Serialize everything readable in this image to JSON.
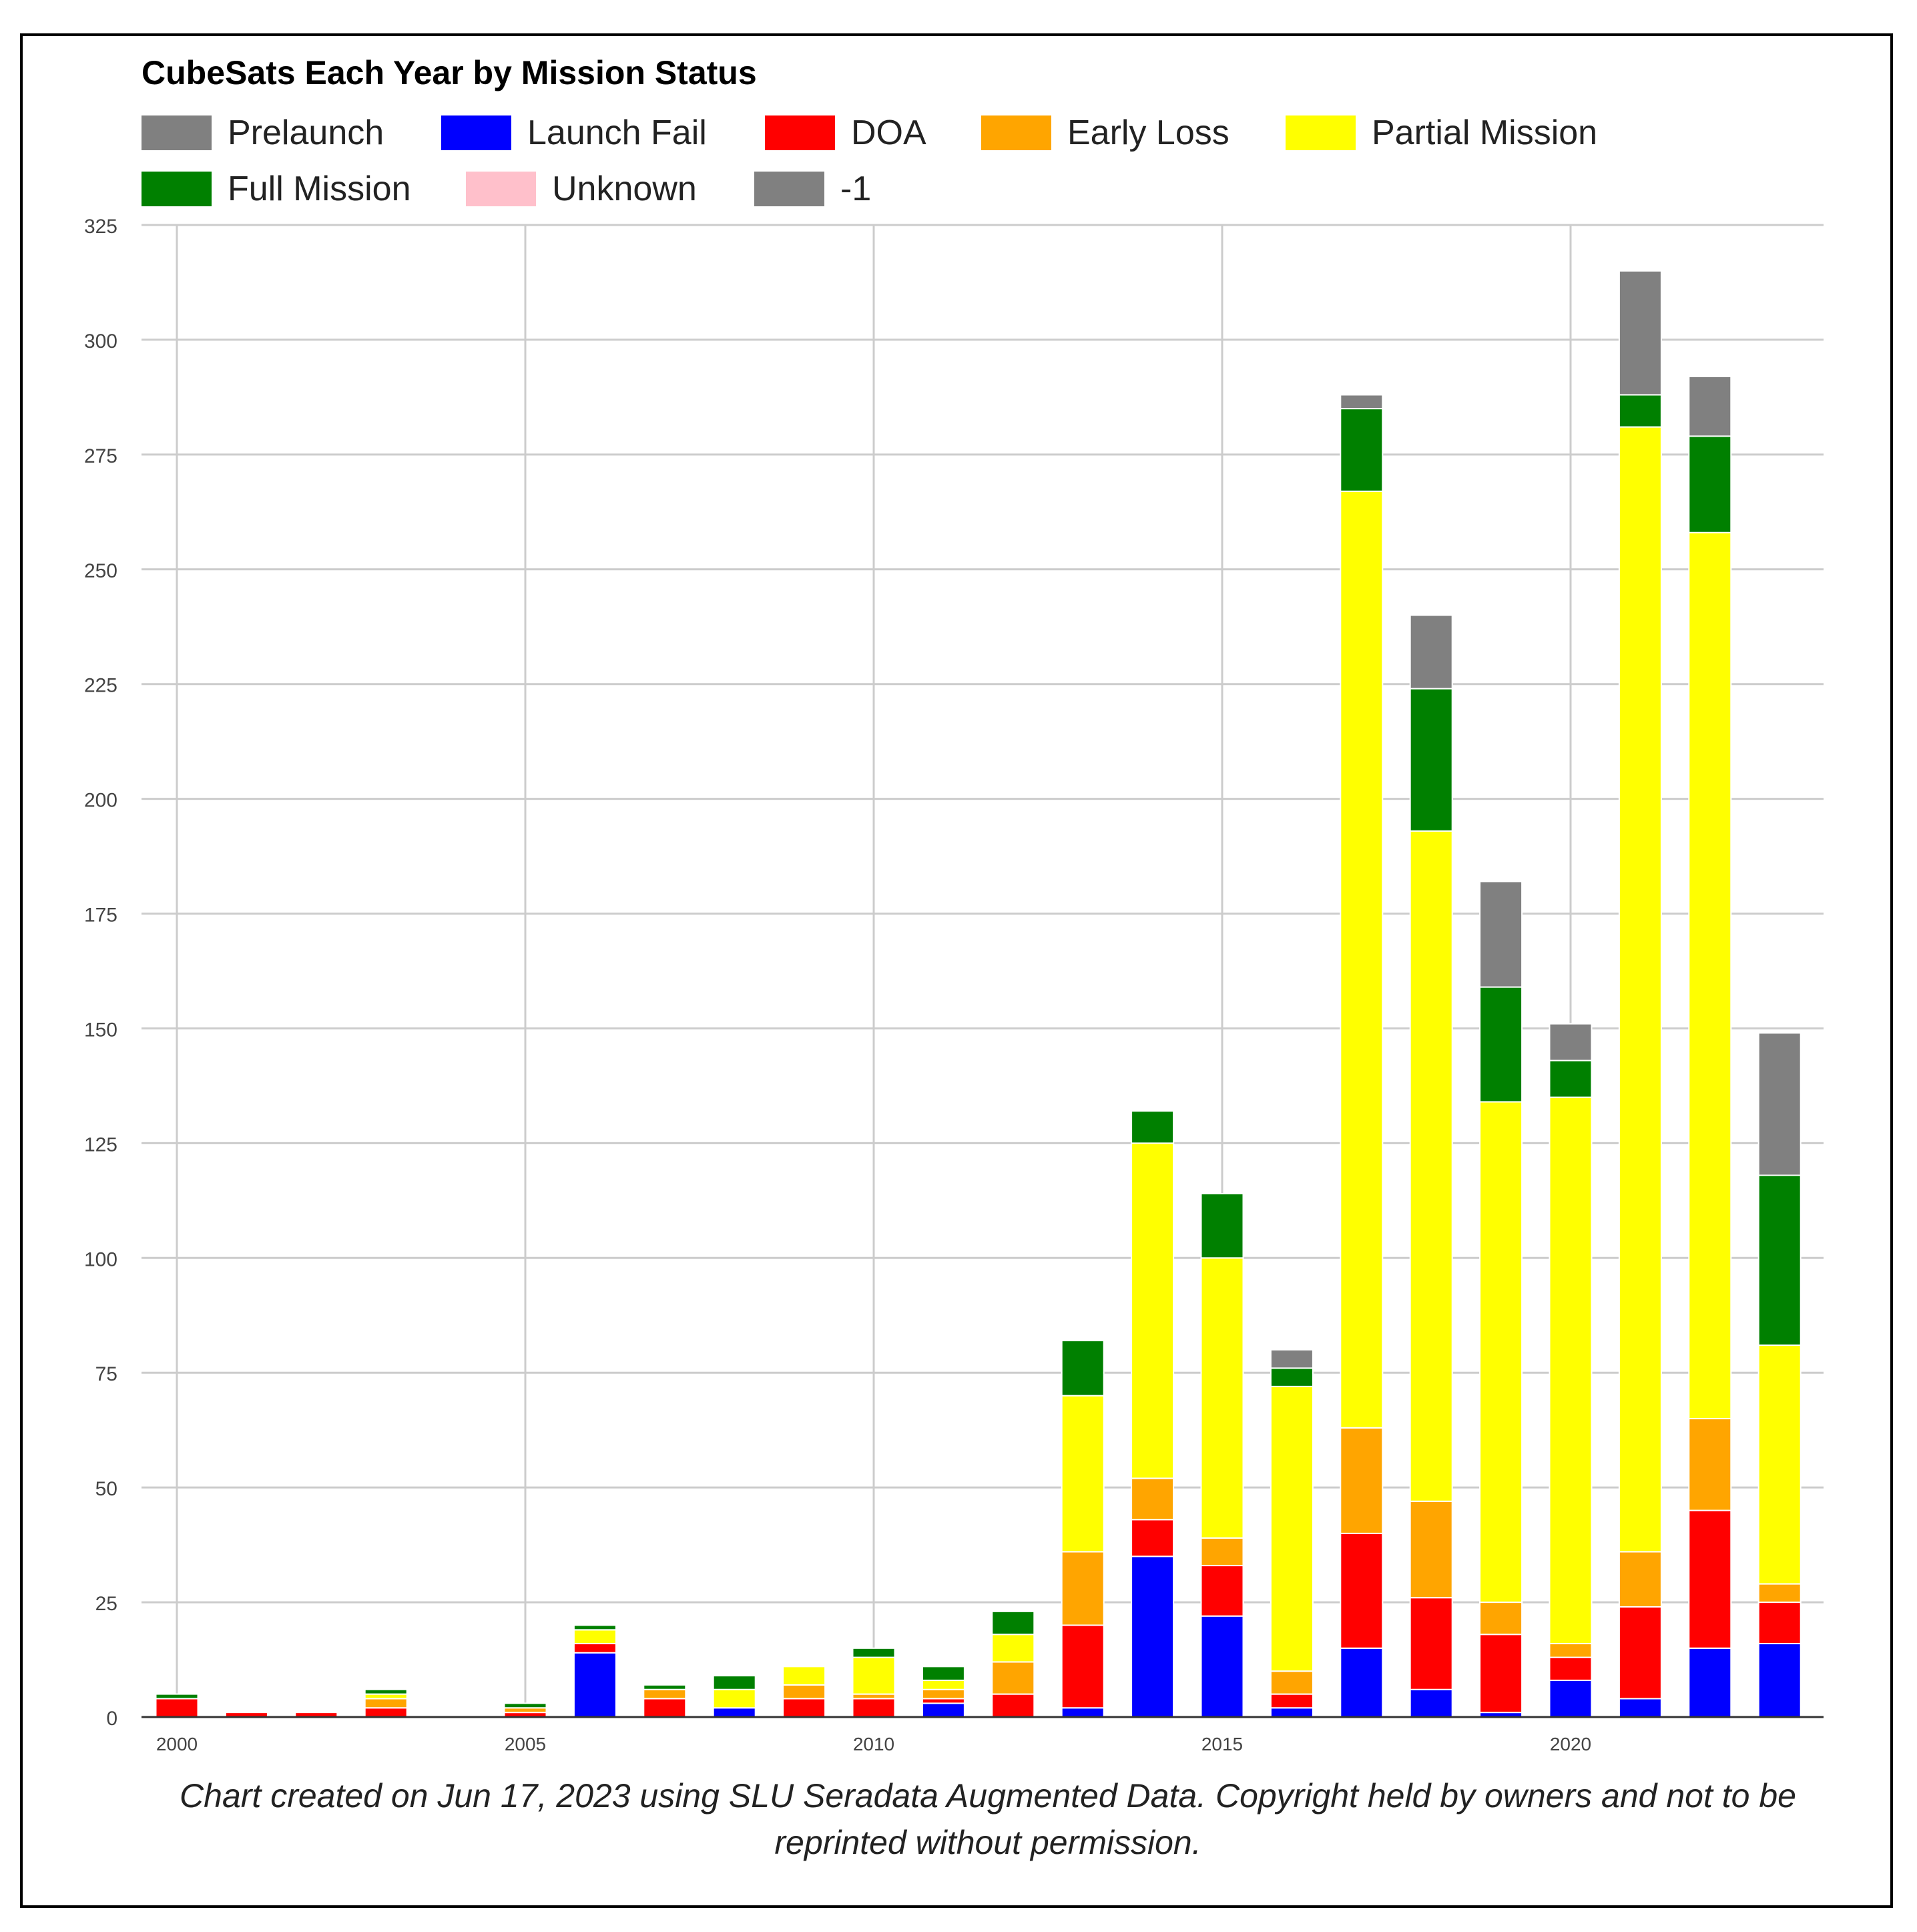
{
  "chart_data": {
    "type": "bar",
    "stacked": true,
    "title": "CubeSats Each Year by Mission Status",
    "caption": "Chart created on Jun 17, 2023 using SLU Seradata Augmented Data. Copyright held by owners and not to be reprinted without permission.",
    "xlabel": "",
    "ylabel": "",
    "ylim": [
      0,
      325
    ],
    "yticks": [
      0,
      25,
      50,
      75,
      100,
      125,
      150,
      175,
      200,
      225,
      250,
      275,
      300,
      325
    ],
    "xticks": [
      "2000",
      "2005",
      "2010",
      "2015",
      "2020"
    ],
    "xtick_years": [
      2000,
      2005,
      2010,
      2015,
      2020
    ],
    "x": [
      2000,
      2001,
      2002,
      2003,
      2004,
      2005,
      2006,
      2007,
      2008,
      2009,
      2010,
      2011,
      2012,
      2013,
      2014,
      2015,
      2016,
      2017,
      2018,
      2019,
      2020,
      2021,
      2022,
      2023
    ],
    "grid": true,
    "legend_position": "top",
    "series": [
      {
        "name": "Prelaunch",
        "color": "#808080",
        "values": [
          0,
          0,
          0,
          0,
          0,
          0,
          0,
          0,
          0,
          0,
          0,
          0,
          0,
          0,
          0,
          0,
          0,
          0,
          0,
          0,
          0,
          0,
          0,
          0
        ]
      },
      {
        "name": "Launch Fail",
        "color": "#0000ff",
        "values": [
          0,
          0,
          0,
          0,
          0,
          0,
          14,
          0,
          2,
          0,
          0,
          3,
          0,
          2,
          35,
          22,
          2,
          15,
          6,
          1,
          8,
          4,
          15,
          16
        ]
      },
      {
        "name": "DOA",
        "color": "#ff0000",
        "values": [
          4,
          1,
          1,
          2,
          0,
          1,
          2,
          4,
          0,
          4,
          4,
          1,
          5,
          18,
          8,
          11,
          3,
          25,
          20,
          17,
          5,
          20,
          30,
          9
        ]
      },
      {
        "name": "Early Loss",
        "color": "#ffa500",
        "values": [
          0,
          0,
          0,
          2,
          0,
          1,
          0,
          2,
          0,
          3,
          1,
          2,
          7,
          16,
          9,
          6,
          5,
          23,
          21,
          7,
          3,
          12,
          20,
          4
        ]
      },
      {
        "name": "Partial Mission",
        "color": "#ffff00",
        "values": [
          0,
          0,
          0,
          1,
          0,
          0,
          3,
          0,
          4,
          4,
          8,
          2,
          6,
          34,
          73,
          61,
          62,
          204,
          146,
          109,
          119,
          245,
          193,
          52
        ]
      },
      {
        "name": "Full Mission",
        "color": "#008000",
        "values": [
          1,
          0,
          0,
          1,
          0,
          1,
          1,
          1,
          3,
          0,
          2,
          3,
          5,
          12,
          7,
          14,
          4,
          18,
          31,
          25,
          8,
          7,
          21,
          37
        ]
      },
      {
        "name": "Unknown",
        "color": "#ffc0cb",
        "values": [
          0,
          0,
          0,
          0,
          0,
          0,
          0,
          0,
          0,
          0,
          0,
          0,
          0,
          0,
          0,
          0,
          0,
          0,
          0,
          0,
          0,
          0,
          0,
          0
        ]
      },
      {
        "name": "-1",
        "color": "#808080",
        "values": [
          0,
          0,
          0,
          0,
          0,
          0,
          0,
          0,
          0,
          0,
          0,
          0,
          0,
          0,
          0,
          0,
          4,
          3,
          16,
          23,
          8,
          27,
          13,
          31
        ]
      }
    ]
  }
}
